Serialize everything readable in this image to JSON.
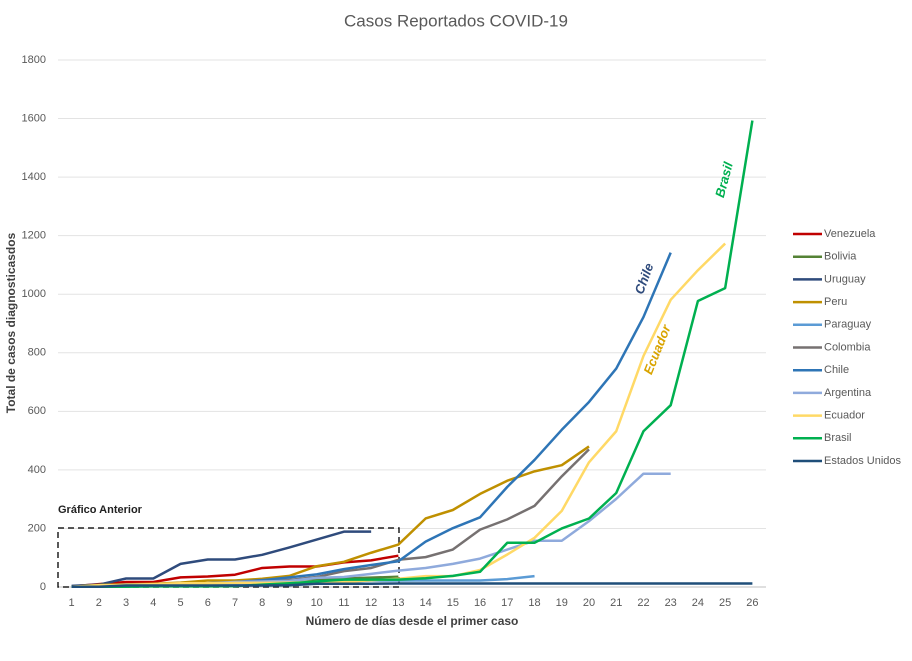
{
  "chart_data": {
    "type": "line",
    "title": "Casos Reportados COVID-19",
    "x_label": "Número de días  desde el primer caso",
    "y_label": "Total de casos diagnosticasdos",
    "categories": [
      "1",
      "2",
      "3",
      "4",
      "5",
      "6",
      "7",
      "8",
      "9",
      "10",
      "11",
      "12",
      "13",
      "14",
      "15",
      "16",
      "17",
      "18",
      "19",
      "20",
      "21",
      "22",
      "23",
      "24",
      "25",
      "26"
    ],
    "ylim": [
      0,
      1800
    ],
    "yticks": [
      0,
      200,
      400,
      600,
      800,
      1000,
      1200,
      1400,
      1600,
      1800
    ],
    "grid": true,
    "legend": "right",
    "annotations": [
      "Chile",
      "Ecuador",
      "Brasil",
      "Gráfico Anterior"
    ],
    "series": [
      {
        "name": "Venezuela",
        "color": "#c00000",
        "values": [
          2,
          10,
          17,
          17,
          33,
          36,
          42,
          65,
          70,
          70,
          84,
          91,
          107,
          null,
          null,
          null,
          null,
          null,
          null,
          null,
          null,
          null,
          null,
          null,
          null,
          null
        ]
      },
      {
        "name": "Bolivia",
        "color": "#548235",
        "values": [
          2,
          2,
          3,
          10,
          11,
          12,
          15,
          19,
          24,
          27,
          29,
          32,
          35,
          null,
          null,
          null,
          null,
          null,
          null,
          null,
          null,
          null,
          null,
          null,
          null,
          null
        ]
      },
      {
        "name": "Uruguay",
        "color": "#2f4b7c",
        "values": [
          4,
          8,
          29,
          29,
          79,
          94,
          94,
          110,
          135,
          162,
          189,
          189,
          null,
          null,
          null,
          null,
          null,
          null,
          null,
          null,
          null,
          null,
          null,
          null,
          null,
          null
        ]
      },
      {
        "name": "Peru",
        "color": "#bf9000",
        "values": [
          1,
          7,
          9,
          11,
          15,
          22,
          22,
          28,
          38,
          71,
          86,
          117,
          145,
          234,
          263,
          318,
          363,
          395,
          416,
          480,
          null,
          null,
          null,
          null,
          null,
          null
        ]
      },
      {
        "name": "Paraguay",
        "color": "#5b9bd5",
        "values": [
          1,
          1,
          2,
          5,
          6,
          6,
          8,
          9,
          11,
          11,
          18,
          22,
          22,
          22,
          22,
          22,
          27,
          37,
          null,
          null,
          null,
          null,
          null,
          null,
          null,
          null
        ]
      },
      {
        "name": "Colombia",
        "color": "#767171",
        "values": [
          1,
          3,
          3,
          9,
          9,
          13,
          16,
          24,
          24,
          34,
          54,
          65,
          93,
          102,
          128,
          196,
          231,
          277,
          378,
          470,
          null,
          null,
          null,
          null,
          null,
          null
        ]
      },
      {
        "name": "Chile",
        "color": "#2e75b6",
        "values": [
          1,
          4,
          5,
          7,
          11,
          13,
          17,
          23,
          33,
          43,
          61,
          75,
          88,
          155,
          201,
          238,
          342,
          434,
          537,
          632,
          746,
          922,
          1142,
          null,
          null,
          null
        ]
      },
      {
        "name": "Argentina",
        "color": "#8faadc",
        "values": [
          1,
          2,
          8,
          9,
          12,
          12,
          17,
          19,
          21,
          31,
          34,
          45,
          56,
          65,
          79,
          97,
          128,
          158,
          158,
          225,
          301,
          387,
          387,
          null,
          null,
          null
        ]
      },
      {
        "name": "Ecuador",
        "color": "#ffd966",
        "values": [
          1,
          6,
          7,
          10,
          13,
          13,
          14,
          14,
          15,
          17,
          17,
          23,
          28,
          37,
          37,
          58,
          111,
          168,
          260,
          426,
          532,
          789,
          981,
          1082,
          1173,
          null
        ]
      },
      {
        "name": "Brasil",
        "color": "#00b050",
        "values": [
          1,
          1,
          1,
          2,
          2,
          2,
          3,
          8,
          13,
          19,
          25,
          25,
          25,
          30,
          38,
          52,
          151,
          151,
          200,
          234,
          321,
          532,
          621,
          977,
          1021,
          1593
        ]
      },
      {
        "name": "Estados Unidos",
        "color": "#1f4e79",
        "values": [
          1,
          1,
          5,
          5,
          5,
          5,
          5,
          5,
          6,
          11,
          11,
          11,
          12,
          12,
          12,
          12,
          12,
          12,
          12,
          12,
          12,
          12,
          12,
          12,
          12,
          12
        ]
      }
    ]
  }
}
